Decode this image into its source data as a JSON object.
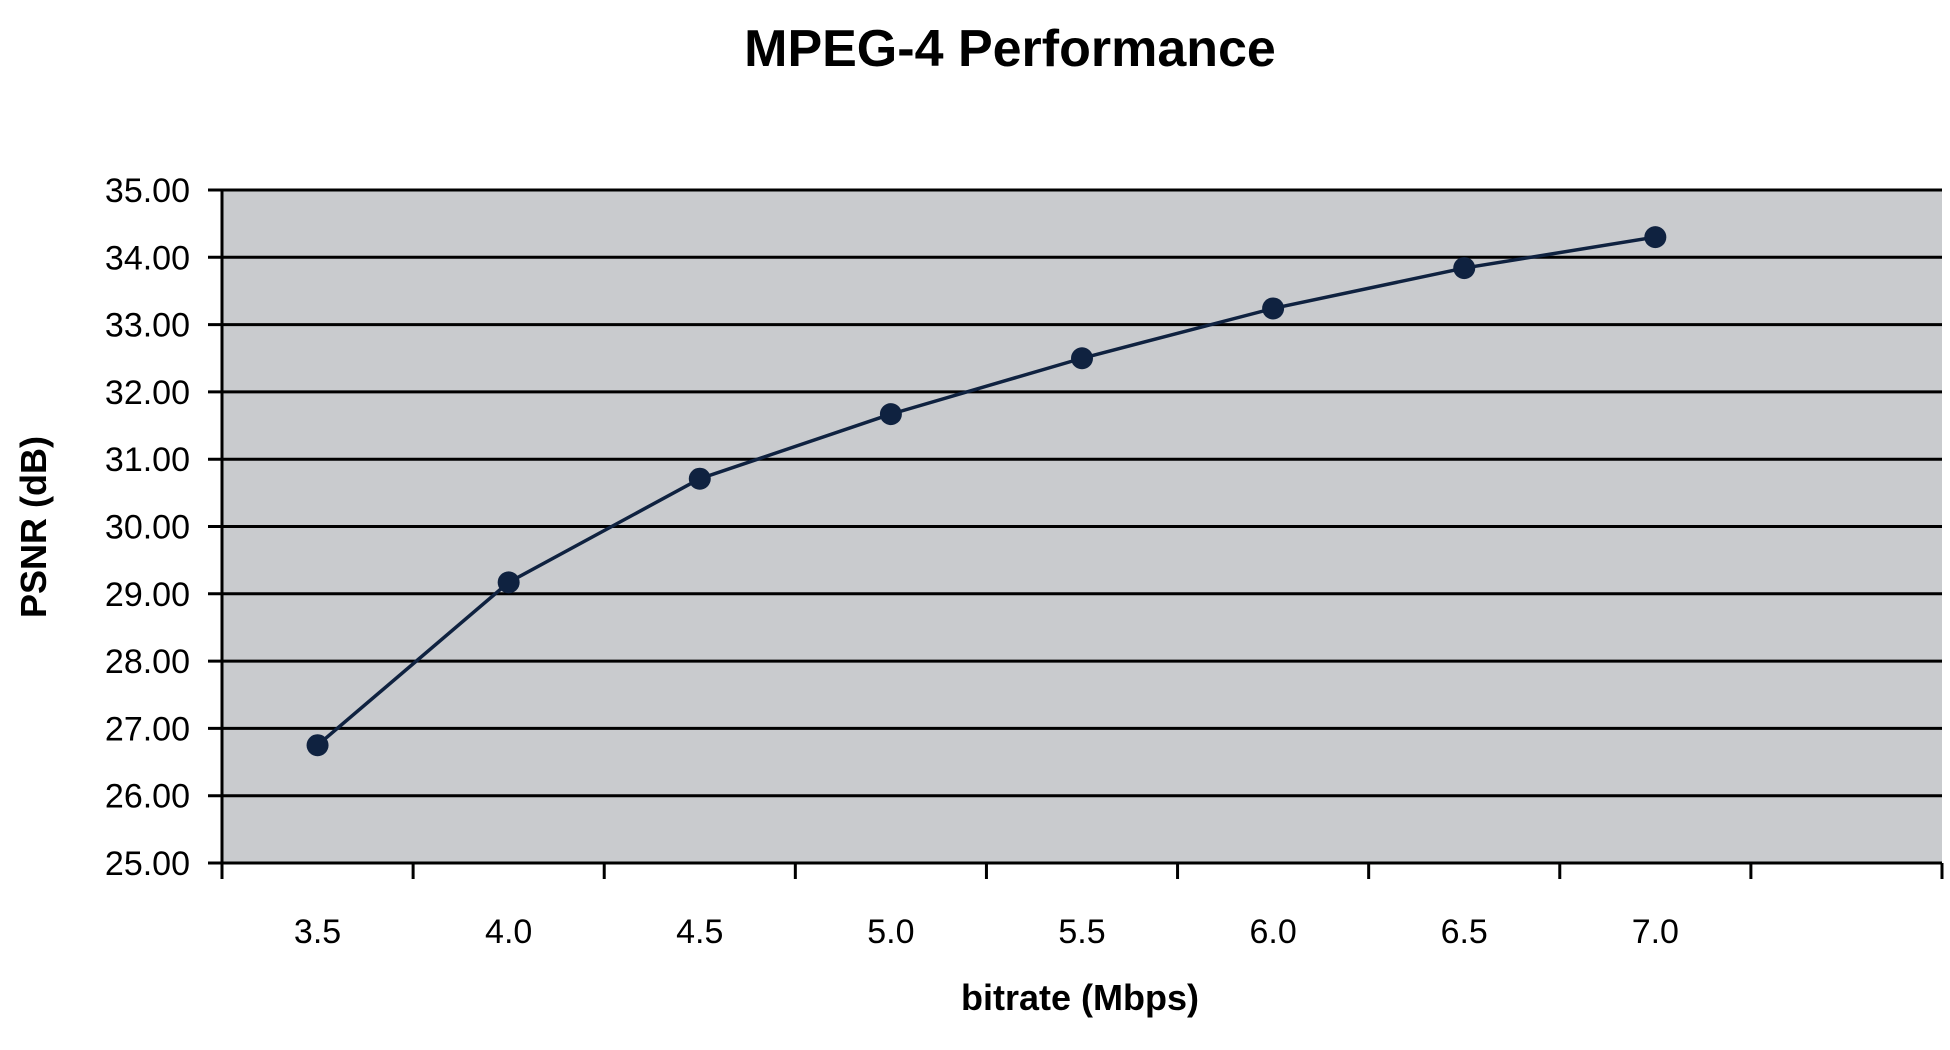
{
  "chart_data": {
    "type": "line",
    "title": "MPEG-4 Performance",
    "xlabel": "bitrate (Mbps)",
    "ylabel": "PSNR (dB)",
    "categories": [
      "3.5",
      "4.0",
      "4.5",
      "5.0",
      "5.5",
      "6.0",
      "6.5",
      "7.0"
    ],
    "series": [
      {
        "values": [
          26.75,
          29.17,
          30.71,
          31.67,
          32.5,
          33.24,
          33.84,
          34.3
        ]
      }
    ],
    "y_ticks": [
      "25.00",
      "26.00",
      "27.00",
      "28.00",
      "29.00",
      "30.00",
      "31.00",
      "32.00",
      "33.00",
      "34.00",
      "35.00"
    ],
    "ylim": [
      25,
      35
    ],
    "grid": true,
    "legend": "none",
    "colors": {
      "plot_background": "#c9cbce",
      "gridline": "#000000",
      "series": "#0f2240"
    }
  }
}
